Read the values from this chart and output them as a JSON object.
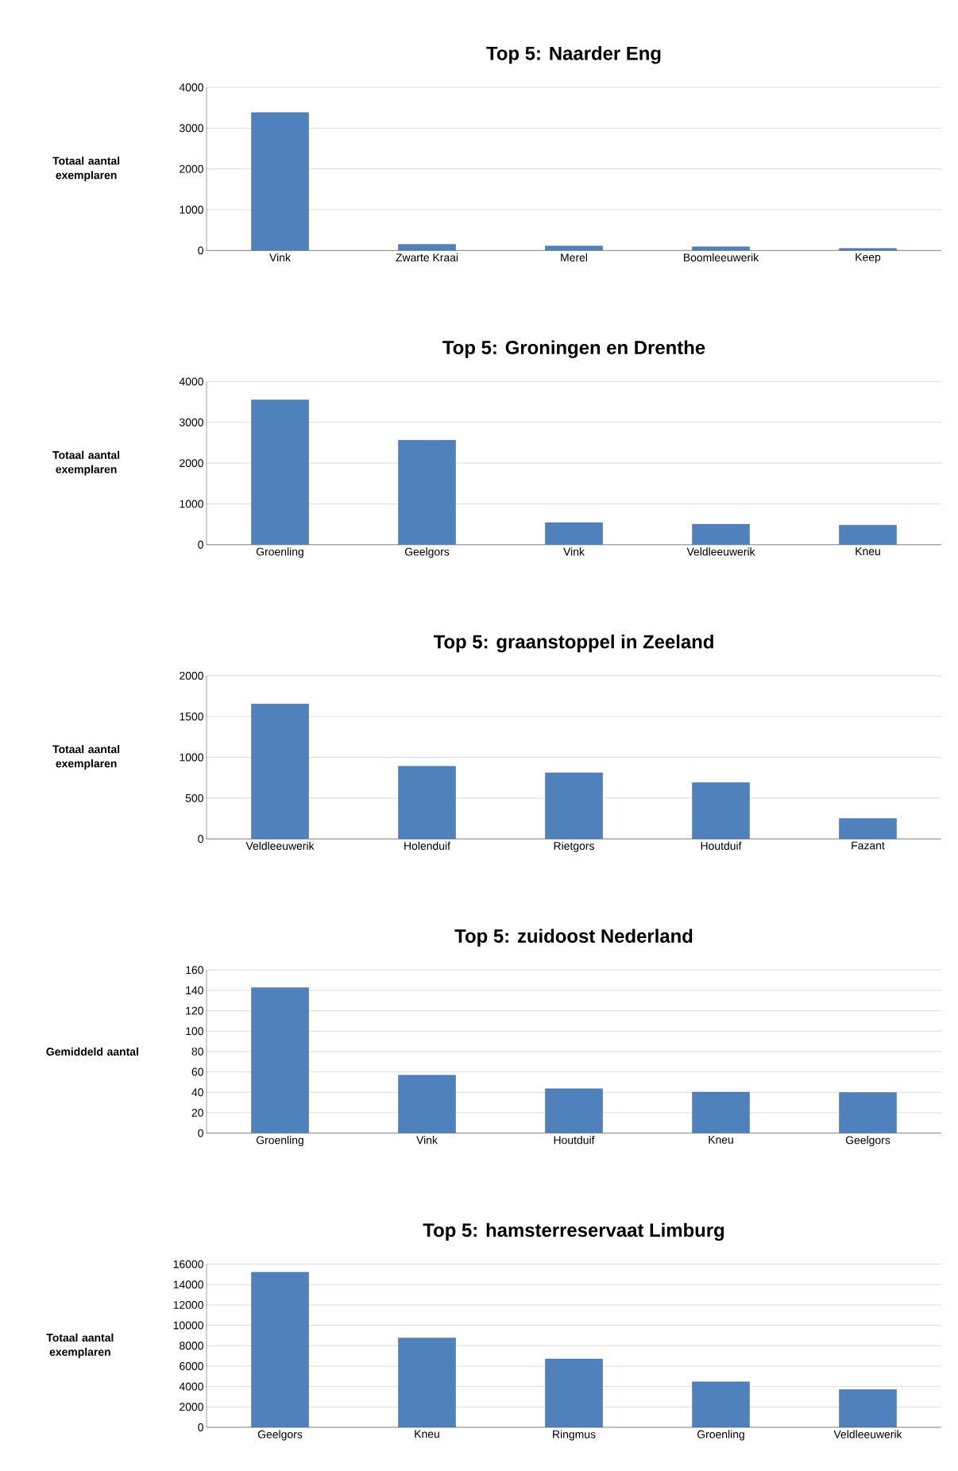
{
  "chart_data": [
    {
      "type": "bar",
      "title": "Top 5: Naarder Eng",
      "ylabel": "Totaal aantal exemplaren",
      "categories": [
        "Vink",
        "Zwarte Kraai",
        "Merel",
        "Boomleeuwerik",
        "Keep"
      ],
      "values": [
        3380,
        150,
        110,
        90,
        50
      ],
      "color": "#4f81bd",
      "ylim": [
        0,
        4000
      ],
      "yticks": [
        0,
        1000,
        2000,
        3000,
        4000
      ],
      "grid": "y"
    },
    {
      "type": "bar",
      "title": "Top 5: Groningen en Drenthe",
      "ylabel": "Totaal aantal exemplaren",
      "categories": [
        "Groenling",
        "Geelgors",
        "Vink",
        "Veldleeuwerik",
        "Kneu"
      ],
      "values": [
        3550,
        2560,
        540,
        500,
        480
      ],
      "color": "#4f81bd",
      "ylim": [
        0,
        4000
      ],
      "yticks": [
        0,
        1000,
        2000,
        3000,
        4000
      ],
      "grid": "y"
    },
    {
      "type": "bar",
      "title": "Top 5: graanstoppel in Zeeland",
      "ylabel": "Totaal aantal exemplaren",
      "categories": [
        "Veldleeuwerik",
        "Holenduif",
        "Rietgors",
        "Houtduif",
        "Fazant"
      ],
      "values": [
        1655,
        890,
        810,
        690,
        250
      ],
      "color": "#4f81bd",
      "ylim": [
        0,
        2000
      ],
      "yticks": [
        0,
        500,
        1000,
        1500,
        2000
      ],
      "grid": "y"
    },
    {
      "type": "bar",
      "title": "Top 5: zuidoost Nederland",
      "ylabel": "Gemiddeld aantal",
      "categories": [
        "Groenling",
        "Vink",
        "Houtduif",
        "Kneu",
        "Geelgors"
      ],
      "values": [
        142.6,
        56.8,
        43.4,
        40.2,
        39.8
      ],
      "color": "#4f81bd",
      "ylim": [
        0,
        160
      ],
      "yticks": [
        0,
        20,
        40,
        60,
        80,
        100,
        120,
        140,
        160
      ],
      "grid": "y"
    },
    {
      "type": "bar",
      "title": "Top 5: hamsterreservaat Limburg",
      "ylabel": "Totaal aantal exemplaren",
      "categories": [
        "Geelgors",
        "Kneu",
        "Ringmus",
        "Groenling",
        "Veldleeuwerik"
      ],
      "values": [
        15200,
        8770,
        6700,
        4450,
        3700
      ],
      "color": "#4f81bd",
      "ylim": [
        0,
        16000
      ],
      "yticks": [
        0,
        2000,
        4000,
        6000,
        8000,
        10000,
        12000,
        14000,
        16000
      ],
      "grid": "y"
    }
  ]
}
